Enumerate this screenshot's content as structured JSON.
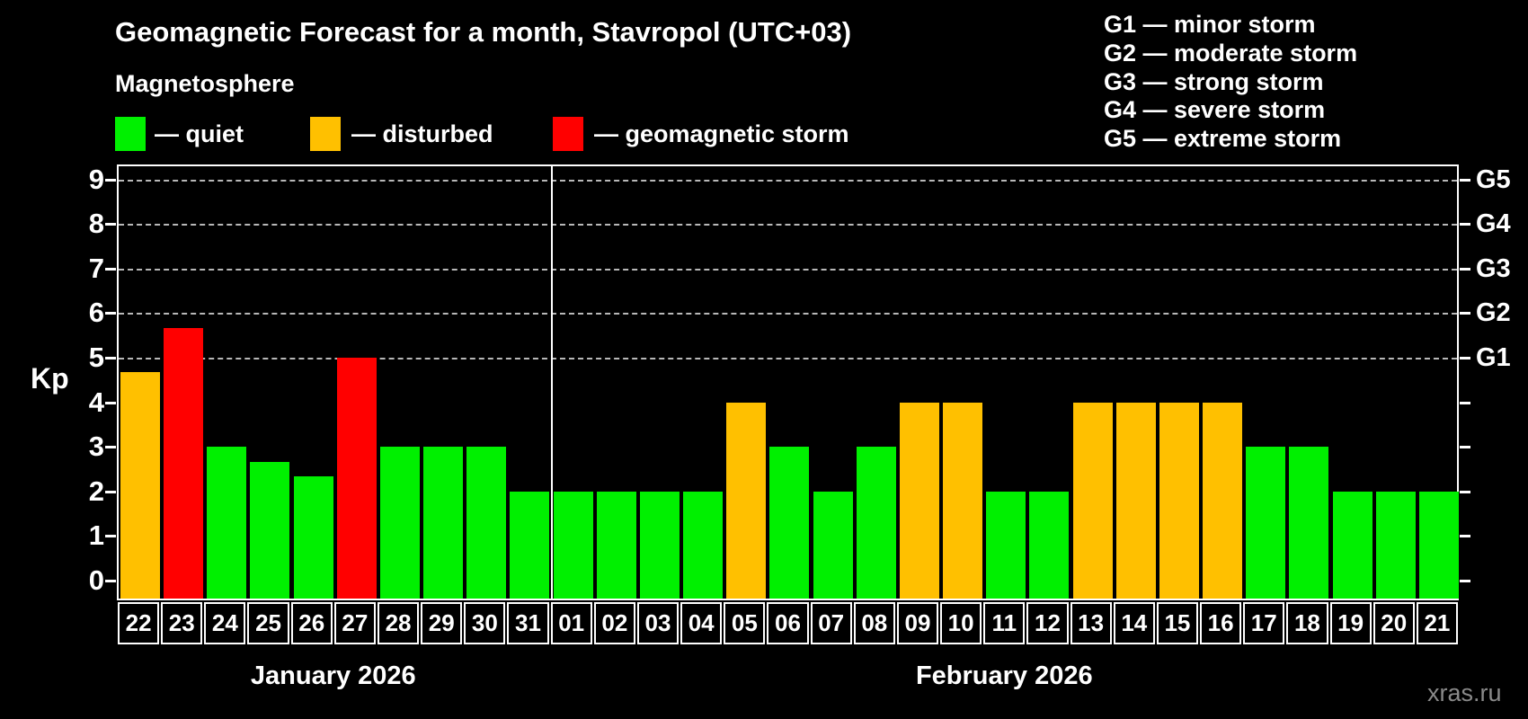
{
  "title": "Geomagnetic Forecast for a month, Stavropol (UTC+03)",
  "subtitle": "Magnetosphere",
  "legend": {
    "quiet_label": "— quiet",
    "disturbed_label": "— disturbed",
    "storm_label": "— geomagnetic storm"
  },
  "g_legend": [
    {
      "label": "G1 — minor storm"
    },
    {
      "label": "G2 — moderate storm"
    },
    {
      "label": "G3 — strong storm"
    },
    {
      "label": "G4 — severe storm"
    },
    {
      "label": "G5 — extreme storm"
    }
  ],
  "watermark": "xras.ru",
  "colors": {
    "quiet": "#00f000",
    "disturbed": "#ffc000",
    "storm": "#ff0000",
    "background": "#000000",
    "text": "#ffffff",
    "grid": "#b8b8b8",
    "watermark": "#8a8a8a"
  },
  "chart_data": {
    "type": "bar",
    "title": "Geomagnetic Forecast for a month, Stavropol (UTC+03)",
    "ylabel": "Kp",
    "ylim": [
      0,
      9.7
    ],
    "yticks": [
      0,
      1,
      2,
      3,
      4,
      5,
      6,
      7,
      8,
      9
    ],
    "gridlines_at_kp": [
      5,
      6,
      7,
      8,
      9
    ],
    "grid": "dashed, only at storm levels 5-9",
    "legend_position": "top-left",
    "right_axis": [
      {
        "label": "G1",
        "kp": 5
      },
      {
        "label": "G2",
        "kp": 6
      },
      {
        "label": "G3",
        "kp": 7
      },
      {
        "label": "G4",
        "kp": 8
      },
      {
        "label": "G5",
        "kp": 9
      }
    ],
    "months": [
      {
        "name": "January 2026",
        "start_index": 0,
        "count": 10
      },
      {
        "name": "February 2026",
        "start_index": 10,
        "count": 21
      }
    ],
    "points": [
      {
        "month": "January 2026",
        "day": "22",
        "kp": 4.67,
        "status": "disturbed"
      },
      {
        "month": "January 2026",
        "day": "23",
        "kp": 5.67,
        "status": "storm"
      },
      {
        "month": "January 2026",
        "day": "24",
        "kp": 3,
        "status": "quiet"
      },
      {
        "month": "January 2026",
        "day": "25",
        "kp": 2.67,
        "status": "quiet"
      },
      {
        "month": "January 2026",
        "day": "26",
        "kp": 2.33,
        "status": "quiet"
      },
      {
        "month": "January 2026",
        "day": "27",
        "kp": 5,
        "status": "storm"
      },
      {
        "month": "January 2026",
        "day": "28",
        "kp": 3,
        "status": "quiet"
      },
      {
        "month": "January 2026",
        "day": "29",
        "kp": 3,
        "status": "quiet"
      },
      {
        "month": "January 2026",
        "day": "30",
        "kp": 3,
        "status": "quiet"
      },
      {
        "month": "January 2026",
        "day": "31",
        "kp": 2,
        "status": "quiet"
      },
      {
        "month": "February 2026",
        "day": "01",
        "kp": 2,
        "status": "quiet"
      },
      {
        "month": "February 2026",
        "day": "02",
        "kp": 2,
        "status": "quiet"
      },
      {
        "month": "February 2026",
        "day": "03",
        "kp": 2,
        "status": "quiet"
      },
      {
        "month": "February 2026",
        "day": "04",
        "kp": 2,
        "status": "quiet"
      },
      {
        "month": "February 2026",
        "day": "05",
        "kp": 4,
        "status": "disturbed"
      },
      {
        "month": "February 2026",
        "day": "06",
        "kp": 3,
        "status": "quiet"
      },
      {
        "month": "February 2026",
        "day": "07",
        "kp": 2,
        "status": "quiet"
      },
      {
        "month": "February 2026",
        "day": "08",
        "kp": 3,
        "status": "quiet"
      },
      {
        "month": "February 2026",
        "day": "09",
        "kp": 4,
        "status": "disturbed"
      },
      {
        "month": "February 2026",
        "day": "10",
        "kp": 4,
        "status": "disturbed"
      },
      {
        "month": "February 2026",
        "day": "11",
        "kp": 2,
        "status": "quiet"
      },
      {
        "month": "February 2026",
        "day": "12",
        "kp": 2,
        "status": "quiet"
      },
      {
        "month": "February 2026",
        "day": "13",
        "kp": 4,
        "status": "disturbed"
      },
      {
        "month": "February 2026",
        "day": "14",
        "kp": 4,
        "status": "disturbed"
      },
      {
        "month": "February 2026",
        "day": "15",
        "kp": 4,
        "status": "disturbed"
      },
      {
        "month": "February 2026",
        "day": "16",
        "kp": 4,
        "status": "disturbed"
      },
      {
        "month": "February 2026",
        "day": "17",
        "kp": 3,
        "status": "quiet"
      },
      {
        "month": "February 2026",
        "day": "18",
        "kp": 3,
        "status": "quiet"
      },
      {
        "month": "February 2026",
        "day": "19",
        "kp": 2,
        "status": "quiet"
      },
      {
        "month": "February 2026",
        "day": "20",
        "kp": 2,
        "status": "quiet"
      },
      {
        "month": "February 2026",
        "day": "21",
        "kp": 2,
        "status": "quiet"
      }
    ]
  }
}
